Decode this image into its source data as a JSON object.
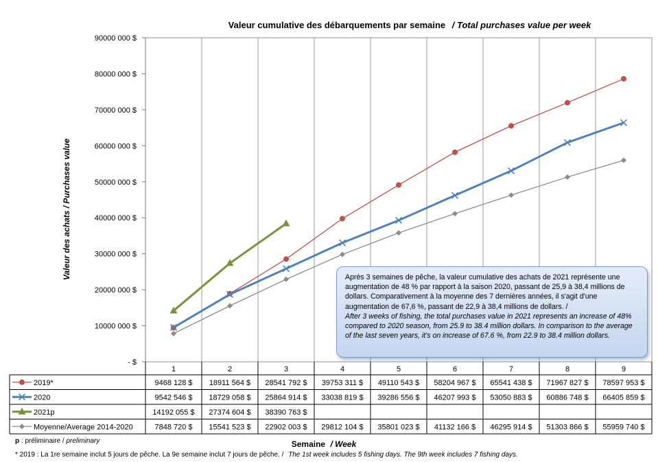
{
  "chart_data": {
    "type": "line",
    "title": "Valeur cumulative des débarquements par semaine",
    "title_en": "/ Total purchases value per week",
    "ylabel": "Valeur des achats / Purchases value",
    "xlabel": "Semaine",
    "xlabel_en": "/ Week",
    "ylim": [
      0,
      90000000
    ],
    "y_ticks": [
      {
        "value": 0,
        "label": "-  $"
      },
      {
        "value": 10000000,
        "label": "10000 000 $"
      },
      {
        "value": 20000000,
        "label": "20000 000 $"
      },
      {
        "value": 30000000,
        "label": "30000 000 $"
      },
      {
        "value": 40000000,
        "label": "40000 000 $"
      },
      {
        "value": 50000000,
        "label": "50000 000 $"
      },
      {
        "value": 60000000,
        "label": "60000 000 $"
      },
      {
        "value": 70000000,
        "label": "70000 000 $"
      },
      {
        "value": 80000000,
        "label": "80000 000 $"
      },
      {
        "value": 90000000,
        "label": "90000 000 $"
      }
    ],
    "categories": [
      "1",
      "2",
      "3",
      "4",
      "5",
      "6",
      "7",
      "8",
      "9"
    ],
    "grid": "vertical",
    "legend_placement": "data-table",
    "series": [
      {
        "name": "2019*",
        "color": "#c0504d",
        "marker": "circle",
        "values": [
          9468128,
          18911564,
          28541792,
          39753311,
          49110543,
          58204967,
          65541438,
          71967827,
          78597953
        ],
        "labels": [
          "9468 128 $",
          "18911 564 $",
          "28541 792 $",
          "39753 311 $",
          "49110 543 $",
          "58204 967 $",
          "65541 438 $",
          "71967 827 $",
          "78597 953 $"
        ]
      },
      {
        "name": "2020",
        "color": "#4f81bd",
        "marker": "x",
        "values": [
          9542546,
          18729058,
          25864914,
          33038819,
          39286556,
          46207993,
          53050883,
          60886748,
          66405859
        ],
        "labels": [
          "9542 546 $",
          "18729 058 $",
          "25864 914 $",
          "33038 819 $",
          "39286 556 $",
          "46207 993 $",
          "53050 883 $",
          "60886 748 $",
          "66405 859 $"
        ]
      },
      {
        "name": "2021p",
        "color": "#77933c",
        "marker": "triangle",
        "values": [
          14192055,
          27374604,
          38390763,
          null,
          null,
          null,
          null,
          null,
          null
        ],
        "labels": [
          "14192 055 $",
          "27374 604 $",
          "38390 763 $",
          "",
          "",
          "",
          "",
          "",
          ""
        ]
      },
      {
        "name": "Moyenne/Average 2014-2020",
        "color": "#8c8c8c",
        "marker": "diamond",
        "values": [
          7848720,
          15541523,
          22902003,
          29812104,
          35801023,
          41132166,
          46295914,
          51303866,
          55959740
        ],
        "labels": [
          "7848 720 $",
          "15541 523 $",
          "22902 003 $",
          "29812 104 $",
          "35801 023 $",
          "41132 166 $",
          "46295 914 $",
          "51303 866 $",
          "55959 740 $"
        ]
      }
    ]
  },
  "annotation": {
    "fr": "Après 3 semaines de pêche, la valeur cumulative des achats de 2021 représente une augmentation de 48 % par rapport à la saison 2020, passant de 25,9 à 38,4 millions de dollars. Comparativement à la moyenne des 7 dernières années, il s'agit d'une augmentation de 67,6 %, passant de 22,9 à 38,4 millions de dollars. /",
    "en": "After 3 weeks of fishing, the total purchases value in 2021 represents an increase of 48% compared to 2020 season, from 25.9 to 38.4 million dollars. In comparison to the average of the last seven years, it's on increase of 67.6 %, from 22.9 to 38.4 million dollars."
  },
  "notes": {
    "preliminary_key": "p",
    "preliminary_fr": " : préliminaire / ",
    "preliminary_en": "preliminary",
    "footnote_fr": "* 2019 : La 1re semaine inclut 5 jours de pêche. La 9e semaine inclut 7 jours de pêche. /",
    "footnote_en": "The 1st week includes 5 fishing days. The 9th week includes 7 fishing days."
  }
}
